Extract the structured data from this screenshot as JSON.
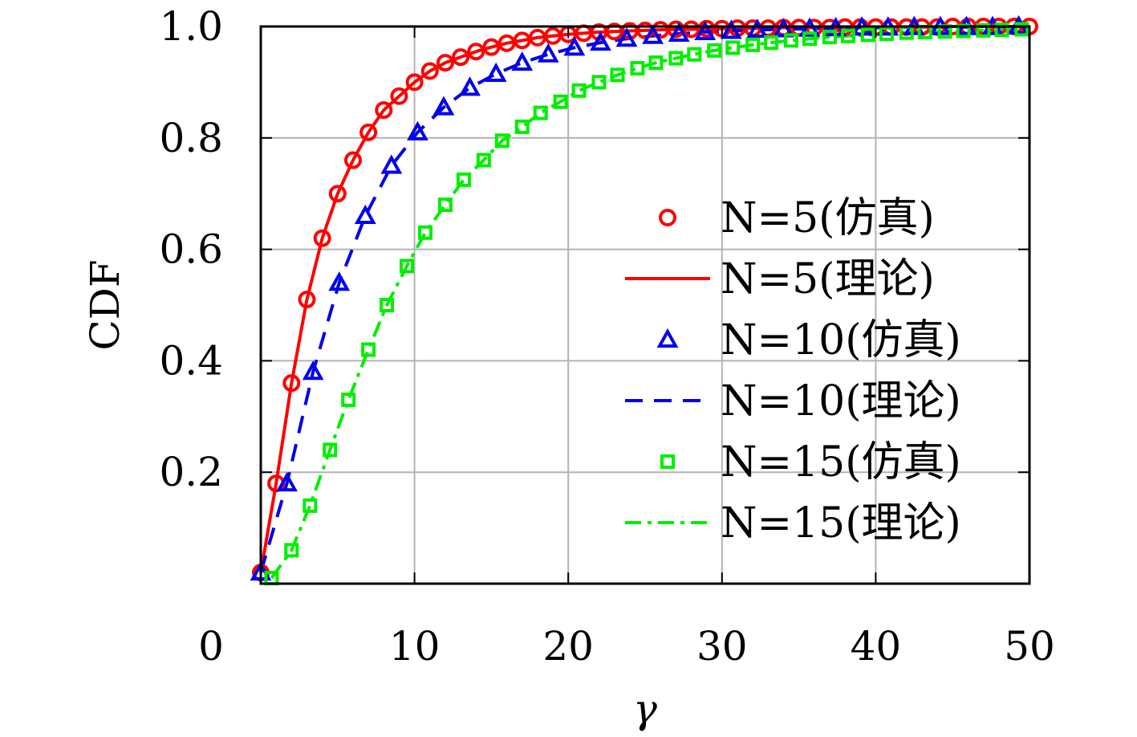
{
  "chart_data": {
    "type": "line",
    "xlabel": "γ",
    "ylabel": "CDF",
    "xlim": [
      0,
      50
    ],
    "ylim": [
      0,
      1.0
    ],
    "x_ticks": [
      "0",
      "10",
      "20",
      "30",
      "40",
      "50"
    ],
    "y_ticks": [
      "0.2",
      "0.4",
      "0.6",
      "0.8",
      "1.0"
    ],
    "grid": true,
    "legend_position": "right",
    "series": [
      {
        "name": "N=5(仿真)",
        "style": "markers",
        "marker": "circle",
        "color": "#ff0000",
        "group": "N5",
        "x": [
          0,
          1,
          2,
          3,
          4,
          5,
          6,
          7,
          8,
          9,
          10,
          11,
          12,
          13,
          14,
          15,
          16,
          17,
          18,
          19,
          20,
          21,
          22,
          23,
          24,
          25,
          26,
          27,
          28,
          29,
          30,
          31,
          32,
          33,
          34,
          35,
          36,
          37,
          38,
          39,
          40,
          41,
          42,
          43,
          44,
          45,
          46,
          47,
          48,
          49,
          50
        ],
        "y": [
          0.02,
          0.18,
          0.36,
          0.51,
          0.62,
          0.7,
          0.76,
          0.81,
          0.85,
          0.875,
          0.9,
          0.92,
          0.935,
          0.945,
          0.955,
          0.963,
          0.97,
          0.975,
          0.98,
          0.983,
          0.986,
          0.988,
          0.99,
          0.991,
          0.992,
          0.993,
          0.994,
          0.995,
          0.995,
          0.996,
          0.996,
          0.997,
          0.997,
          0.997,
          0.998,
          0.998,
          0.998,
          0.998,
          0.999,
          0.999,
          0.999,
          0.999,
          0.999,
          0.999,
          0.999,
          1.0,
          1.0,
          1.0,
          1.0,
          1.0,
          1.0
        ]
      },
      {
        "name": "N=5(理论)",
        "style": "line",
        "dash": "solid",
        "color": "#ff0000",
        "group": "N5",
        "x": [
          0,
          1,
          2,
          3,
          4,
          5,
          6,
          7,
          8,
          9,
          10,
          11,
          12,
          13,
          14,
          15,
          16,
          17,
          18,
          19,
          20,
          21,
          22,
          23,
          24,
          25,
          26,
          27,
          28,
          29,
          30,
          31,
          32,
          33,
          34,
          35,
          36,
          37,
          38,
          39,
          40,
          41,
          42,
          43,
          44,
          45,
          46,
          47,
          48,
          49,
          50
        ],
        "y": [
          0.02,
          0.18,
          0.36,
          0.51,
          0.62,
          0.7,
          0.76,
          0.81,
          0.85,
          0.875,
          0.9,
          0.92,
          0.935,
          0.945,
          0.955,
          0.963,
          0.97,
          0.975,
          0.98,
          0.983,
          0.986,
          0.988,
          0.99,
          0.991,
          0.992,
          0.993,
          0.994,
          0.995,
          0.995,
          0.996,
          0.996,
          0.997,
          0.997,
          0.997,
          0.998,
          0.998,
          0.998,
          0.998,
          0.999,
          0.999,
          0.999,
          0.999,
          0.999,
          0.999,
          0.999,
          1.0,
          1.0,
          1.0,
          1.0,
          1.0,
          1.0
        ]
      },
      {
        "name": "N=10(仿真)",
        "style": "markers",
        "marker": "triangle",
        "color": "#0000ee",
        "group": "N10",
        "x": [
          0,
          1.7,
          3.4,
          5.1,
          6.8,
          8.5,
          10.2,
          11.9,
          13.6,
          15.3,
          17,
          18.7,
          20.4,
          22.1,
          23.8,
          25.5,
          27.2,
          28.9,
          30.6,
          32.3,
          34,
          35.7,
          37.4,
          39.1,
          40.8,
          42.5,
          44.2,
          45.9,
          47.6,
          49.3
        ],
        "y": [
          0.02,
          0.18,
          0.38,
          0.54,
          0.66,
          0.75,
          0.81,
          0.855,
          0.89,
          0.915,
          0.935,
          0.95,
          0.962,
          0.971,
          0.978,
          0.983,
          0.987,
          0.99,
          0.992,
          0.994,
          0.995,
          0.996,
          0.997,
          0.998,
          0.998,
          0.999,
          0.999,
          0.999,
          0.999,
          1.0
        ]
      },
      {
        "name": "N=10(理论)",
        "style": "line",
        "dash": "dashed",
        "color": "#0000ee",
        "group": "N10",
        "x": [
          0,
          1.7,
          3.4,
          5.1,
          6.8,
          8.5,
          10.2,
          11.9,
          13.6,
          15.3,
          17,
          18.7,
          20.4,
          22.1,
          23.8,
          25.5,
          27.2,
          28.9,
          30.6,
          32.3,
          34,
          35.7,
          37.4,
          39.1,
          40.8,
          42.5,
          44.2,
          45.9,
          47.6,
          49.3
        ],
        "y": [
          0.02,
          0.18,
          0.38,
          0.54,
          0.66,
          0.75,
          0.81,
          0.855,
          0.89,
          0.915,
          0.935,
          0.95,
          0.962,
          0.971,
          0.978,
          0.983,
          0.987,
          0.99,
          0.992,
          0.994,
          0.995,
          0.996,
          0.997,
          0.998,
          0.998,
          0.999,
          0.999,
          0.999,
          0.999,
          1.0
        ]
      },
      {
        "name": "N=15(仿真)",
        "style": "markers",
        "marker": "square",
        "color": "#00ee00",
        "group": "N15",
        "x": [
          0.7,
          2,
          3.2,
          4.5,
          5.7,
          7,
          8.2,
          9.5,
          10.7,
          12,
          13.2,
          14.5,
          15.7,
          17,
          18.2,
          19.5,
          20.7,
          22,
          23.2,
          24.5,
          25.7,
          27,
          28.2,
          29.5,
          30.7,
          32,
          33.2,
          34.5,
          35.7,
          37,
          38.2,
          39.5,
          40.7,
          42,
          43.2,
          44.5,
          45.7,
          47,
          48.2,
          49.5
        ],
        "y": [
          0.01,
          0.06,
          0.14,
          0.24,
          0.33,
          0.42,
          0.5,
          0.57,
          0.63,
          0.68,
          0.725,
          0.76,
          0.795,
          0.82,
          0.845,
          0.865,
          0.885,
          0.9,
          0.913,
          0.925,
          0.935,
          0.943,
          0.95,
          0.957,
          0.962,
          0.967,
          0.971,
          0.975,
          0.978,
          0.981,
          0.983,
          0.985,
          0.987,
          0.989,
          0.99,
          0.991,
          0.992,
          0.993,
          0.994,
          0.995
        ]
      },
      {
        "name": "N=15(理论)",
        "style": "line",
        "dash": "dashdot",
        "color": "#00ee00",
        "group": "N15",
        "x": [
          0.7,
          2,
          3.2,
          4.5,
          5.7,
          7,
          8.2,
          9.5,
          10.7,
          12,
          13.2,
          14.5,
          15.7,
          17,
          18.2,
          19.5,
          20.7,
          22,
          23.2,
          24.5,
          25.7,
          27,
          28.2,
          29.5,
          30.7,
          32,
          33.2,
          34.5,
          35.7,
          37,
          38.2,
          39.5,
          40.7,
          42,
          43.2,
          44.5,
          45.7,
          47,
          48.2,
          49.5
        ],
        "y": [
          0.01,
          0.06,
          0.14,
          0.24,
          0.33,
          0.42,
          0.5,
          0.57,
          0.63,
          0.68,
          0.725,
          0.76,
          0.795,
          0.82,
          0.845,
          0.865,
          0.885,
          0.9,
          0.913,
          0.925,
          0.935,
          0.943,
          0.95,
          0.957,
          0.962,
          0.967,
          0.971,
          0.975,
          0.978,
          0.981,
          0.983,
          0.985,
          0.987,
          0.989,
          0.99,
          0.991,
          0.992,
          0.993,
          0.994,
          0.995
        ]
      }
    ]
  }
}
